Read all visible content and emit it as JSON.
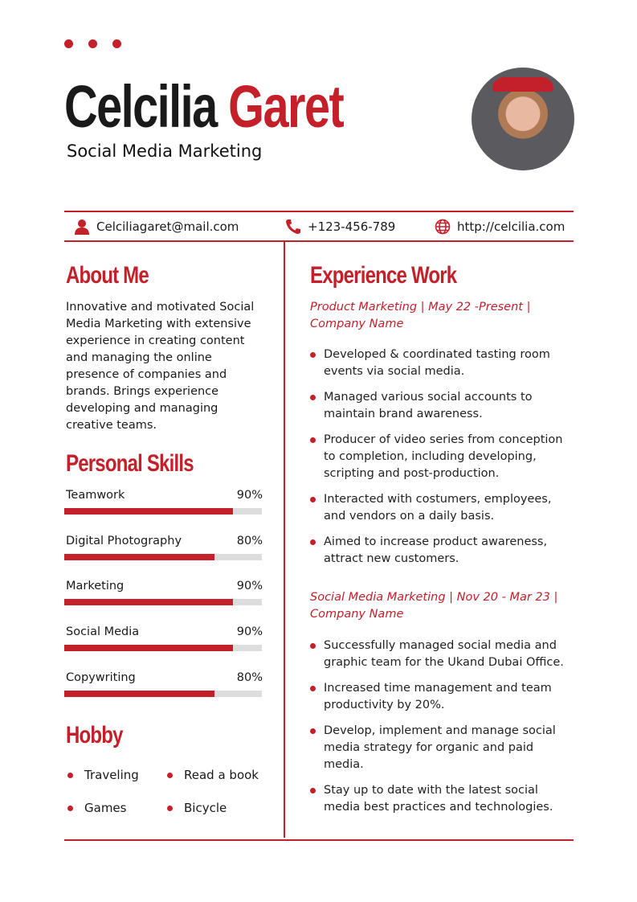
{
  "header": {
    "first_name": "Celcilia",
    "last_name": "Garet",
    "title": "Social Media Marketing"
  },
  "contact": {
    "email": "Celciliagaret@mail.com",
    "phone": "+123-456-789",
    "website": "http://celcilia.com"
  },
  "about": {
    "heading": "About Me",
    "text": "Innovative and motivated Social Media Marketing with extensive experience in creating content and managing the online presence of companies and brands. Brings experience developing and managing creative teams."
  },
  "skills": {
    "heading": "Personal Skills",
    "items": [
      {
        "label": "Teamwork",
        "value": "90%",
        "level": 90
      },
      {
        "label": "Digital Photography",
        "value": "80%",
        "level": 80
      },
      {
        "label": "Marketing",
        "value": "90%",
        "level": 90
      },
      {
        "label": "Social Media",
        "value": "90%",
        "level": 90
      },
      {
        "label": "Copywriting",
        "value": "80%",
        "level": 80
      }
    ]
  },
  "hobby": {
    "heading": "Hobby",
    "items": [
      "Traveling",
      "Read a book",
      "Games",
      "Bicycle"
    ]
  },
  "experience": {
    "heading": "Experience Work",
    "jobs": [
      {
        "title": "Product Marketing | May 22 -Present | Company Name",
        "bullets": [
          "Developed & coordinated tasting room events via social media.",
          "Managed various social accounts to maintain brand awareness.",
          "Producer of video series from conception to completion, including developing, scripting and post-production.",
          "Interacted with costumers, employees, and vendors on a daily basis.",
          "Aimed to increase product awareness, attract new customers."
        ]
      },
      {
        "title": "Social Media Marketing | Nov 20 - Mar 23 | Company Name",
        "bullets": [
          "Successfully managed social media and graphic team for the Ukand Dubai Office.",
          "Increased time management and team productivity by 20%.",
          "Develop, implement and manage social media strategy for organic and paid media.",
          "Stay up to date with the latest social media best practices and technologies."
        ]
      }
    ]
  },
  "colors": {
    "accent": "#c4202a"
  }
}
